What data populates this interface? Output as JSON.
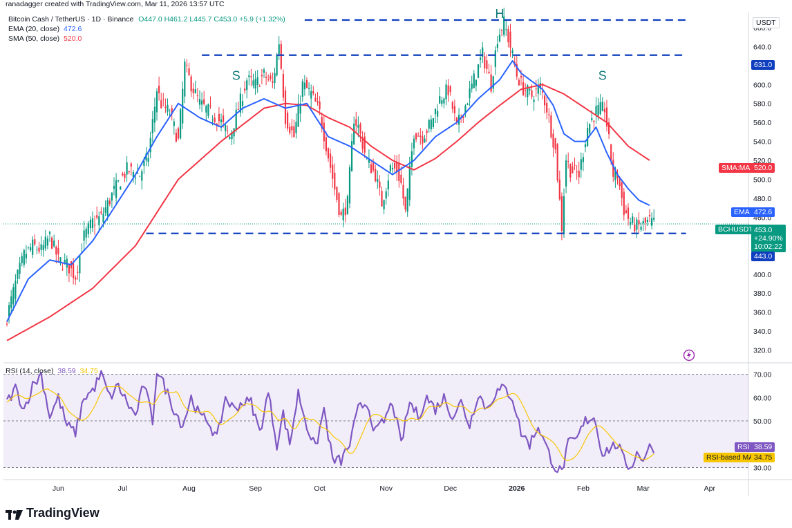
{
  "header": {
    "publisher": "ranadagger created with TradingView.com, Mar 11, 2026 13:57 UTC"
  },
  "legend": {
    "symbol": "Bitcoin Cash / TetherUS · 1D · Binance",
    "ohlc": "O447.0 H461.2 L445.7 C453.0 +5.9 (+1.32%)",
    "ema_title": "EMA (20, close)",
    "ema_value": "472.6",
    "sma_title": "SMA (50, close)",
    "sma_value": "520.0",
    "rsi_title": "RSI (14, close)",
    "rsi_value": "38.59",
    "rsi_ma_value": "34.75"
  },
  "tags": {
    "currency": "USDT",
    "sma_label": "SMA:MA",
    "sma_value": "520.0",
    "ema_label": "EMA",
    "ema_value": "472.6",
    "symbol": "BCHUSDT",
    "price": "453.0",
    "change": "+24.90%",
    "countdown": "10:02:22",
    "support": "443.0",
    "resistance": "631.0",
    "rsi_label": "RSI",
    "rsi_value": "38.59",
    "rsi_ma_label": "RSI-based MA",
    "rsi_ma_value": "34.75"
  },
  "brand": "TradingView",
  "colors": {
    "up": "#089981",
    "down": "#f23645",
    "ema": "#2962ff",
    "sma": "#f23645",
    "rsi": "#7e57c2",
    "rsi_ma": "#f7c600",
    "annot": "#0f3fbf",
    "letters": "#127a78"
  },
  "chart_data": {
    "type": "candlestick",
    "symbol": "BCHUSDT",
    "timeframe": "1D",
    "price_axis": {
      "ticks": [
        320,
        340,
        360,
        380,
        400,
        420,
        440,
        460,
        480,
        500,
        520,
        540,
        560,
        580,
        600,
        620,
        640,
        660
      ],
      "range": [
        308,
        676
      ]
    },
    "time_axis": {
      "labels": [
        "Jun",
        "Jul",
        "Aug",
        "Sep",
        "Oct",
        "Nov",
        "Dec",
        "2026",
        "Feb",
        "Mar",
        "Apr"
      ],
      "label_days": [
        24,
        54,
        85,
        116,
        146,
        177,
        207,
        238,
        269,
        297,
        328
      ]
    },
    "price_anchors": [
      [
        0,
        355
      ],
      [
        4,
        390
      ],
      [
        8,
        420
      ],
      [
        12,
        430
      ],
      [
        16,
        425
      ],
      [
        20,
        440
      ],
      [
        24,
        415
      ],
      [
        28,
        410
      ],
      [
        32,
        398
      ],
      [
        36,
        440
      ],
      [
        40,
        455
      ],
      [
        44,
        460
      ],
      [
        50,
        488
      ],
      [
        56,
        510
      ],
      [
        62,
        505
      ],
      [
        66,
        525
      ],
      [
        70,
        595
      ],
      [
        72,
        580
      ],
      [
        76,
        570
      ],
      [
        80,
        540
      ],
      [
        83,
        620
      ],
      [
        86,
        600
      ],
      [
        90,
        580
      ],
      [
        95,
        570
      ],
      [
        100,
        560
      ],
      [
        104,
        545
      ],
      [
        108,
        575
      ],
      [
        112,
        605
      ],
      [
        116,
        600
      ],
      [
        120,
        610
      ],
      [
        124,
        600
      ],
      [
        127,
        645
      ],
      [
        130,
        565
      ],
      [
        134,
        545
      ],
      [
        138,
        600
      ],
      [
        142,
        590
      ],
      [
        146,
        570
      ],
      [
        150,
        525
      ],
      [
        153,
        490
      ],
      [
        156,
        460
      ],
      [
        159,
        475
      ],
      [
        162,
        565
      ],
      [
        164,
        555
      ],
      [
        168,
        520
      ],
      [
        172,
        505
      ],
      [
        175,
        475
      ],
      [
        179,
        512
      ],
      [
        182,
        510
      ],
      [
        184,
        495
      ],
      [
        186,
        465
      ],
      [
        190,
        550
      ],
      [
        194,
        545
      ],
      [
        198,
        560
      ],
      [
        202,
        585
      ],
      [
        206,
        595
      ],
      [
        210,
        555
      ],
      [
        214,
        578
      ],
      [
        218,
        605
      ],
      [
        222,
        632
      ],
      [
        226,
        600
      ],
      [
        229,
        650
      ],
      [
        232,
        665
      ],
      [
        235,
        640
      ],
      [
        238,
        610
      ],
      [
        241,
        596
      ],
      [
        245,
        588
      ],
      [
        249,
        598
      ],
      [
        252,
        575
      ],
      [
        256,
        530
      ],
      [
        259,
        450
      ],
      [
        261,
        522
      ],
      [
        263,
        510
      ],
      [
        267,
        505
      ],
      [
        271,
        555
      ],
      [
        275,
        572
      ],
      [
        279,
        575
      ],
      [
        281,
        540
      ],
      [
        283,
        505
      ],
      [
        285,
        505
      ],
      [
        288,
        468
      ],
      [
        291,
        455
      ],
      [
        294,
        450
      ],
      [
        297,
        452
      ],
      [
        300,
        456
      ],
      [
        302,
        453
      ]
    ],
    "ema20_anchors": [
      [
        0,
        350
      ],
      [
        10,
        395
      ],
      [
        20,
        415
      ],
      [
        30,
        410
      ],
      [
        40,
        435
      ],
      [
        50,
        470
      ],
      [
        60,
        505
      ],
      [
        70,
        545
      ],
      [
        80,
        580
      ],
      [
        90,
        565
      ],
      [
        100,
        555
      ],
      [
        110,
        575
      ],
      [
        120,
        585
      ],
      [
        130,
        575
      ],
      [
        140,
        580
      ],
      [
        150,
        545
      ],
      [
        160,
        535
      ],
      [
        170,
        520
      ],
      [
        180,
        505
      ],
      [
        190,
        520
      ],
      [
        200,
        545
      ],
      [
        210,
        560
      ],
      [
        220,
        585
      ],
      [
        230,
        605
      ],
      [
        236,
        625
      ],
      [
        240,
        612
      ],
      [
        250,
        595
      ],
      [
        255,
        578
      ],
      [
        260,
        548
      ],
      [
        265,
        540
      ],
      [
        270,
        540
      ],
      [
        275,
        555
      ],
      [
        280,
        528
      ],
      [
        285,
        505
      ],
      [
        290,
        490
      ],
      [
        295,
        478
      ],
      [
        300,
        472.6
      ]
    ],
    "sma50_anchors": [
      [
        0,
        330
      ],
      [
        20,
        355
      ],
      [
        40,
        385
      ],
      [
        60,
        430
      ],
      [
        80,
        500
      ],
      [
        100,
        540
      ],
      [
        120,
        575
      ],
      [
        130,
        580
      ],
      [
        140,
        578
      ],
      [
        150,
        565
      ],
      [
        160,
        555
      ],
      [
        170,
        535
      ],
      [
        180,
        520
      ],
      [
        190,
        510
      ],
      [
        200,
        522
      ],
      [
        210,
        540
      ],
      [
        220,
        560
      ],
      [
        230,
        578
      ],
      [
        240,
        595
      ],
      [
        250,
        600
      ],
      [
        260,
        590
      ],
      [
        270,
        575
      ],
      [
        280,
        560
      ],
      [
        290,
        535
      ],
      [
        300,
        520
      ]
    ],
    "rsi_anchors": [
      [
        0,
        58
      ],
      [
        4,
        64
      ],
      [
        8,
        55
      ],
      [
        12,
        65
      ],
      [
        16,
        70
      ],
      [
        20,
        52
      ],
      [
        24,
        60
      ],
      [
        28,
        48
      ],
      [
        32,
        45
      ],
      [
        36,
        60
      ],
      [
        40,
        63
      ],
      [
        44,
        70
      ],
      [
        48,
        60
      ],
      [
        52,
        65
      ],
      [
        56,
        58
      ],
      [
        60,
        52
      ],
      [
        64,
        66
      ],
      [
        68,
        50
      ],
      [
        70,
        72
      ],
      [
        74,
        64
      ],
      [
        78,
        55
      ],
      [
        82,
        48
      ],
      [
        86,
        60
      ],
      [
        90,
        52
      ],
      [
        94,
        50
      ],
      [
        98,
        42
      ],
      [
        102,
        60
      ],
      [
        106,
        55
      ],
      [
        110,
        58
      ],
      [
        114,
        58
      ],
      [
        118,
        45
      ],
      [
        122,
        62
      ],
      [
        126,
        40
      ],
      [
        129,
        53
      ],
      [
        132,
        40
      ],
      [
        136,
        62
      ],
      [
        140,
        48
      ],
      [
        144,
        38
      ],
      [
        148,
        55
      ],
      [
        152,
        33
      ],
      [
        156,
        33
      ],
      [
        160,
        40
      ],
      [
        164,
        55
      ],
      [
        168,
        58
      ],
      [
        172,
        45
      ],
      [
        176,
        50
      ],
      [
        180,
        58
      ],
      [
        184,
        40
      ],
      [
        188,
        58
      ],
      [
        192,
        52
      ],
      [
        196,
        60
      ],
      [
        200,
        55
      ],
      [
        204,
        60
      ],
      [
        208,
        52
      ],
      [
        212,
        58
      ],
      [
        216,
        48
      ],
      [
        220,
        62
      ],
      [
        224,
        55
      ],
      [
        228,
        62
      ],
      [
        232,
        64
      ],
      [
        236,
        60
      ],
      [
        240,
        45
      ],
      [
        244,
        40
      ],
      [
        248,
        48
      ],
      [
        252,
        38
      ],
      [
        256,
        30
      ],
      [
        259,
        28
      ],
      [
        262,
        40
      ],
      [
        266,
        42
      ],
      [
        270,
        50
      ],
      [
        274,
        52
      ],
      [
        278,
        36
      ],
      [
        281,
        38
      ],
      [
        285,
        40
      ],
      [
        288,
        33
      ],
      [
        291,
        30
      ],
      [
        294,
        36
      ],
      [
        297,
        34
      ],
      [
        300,
        38.59
      ]
    ],
    "rsi_axis": {
      "ticks": [
        30,
        40,
        50,
        60,
        70
      ],
      "range": [
        26,
        74
      ],
      "bands": [
        30,
        70
      ],
      "mid": 50
    },
    "levels": [
      {
        "price": 668,
        "day_from": 139,
        "day_to": 317
      },
      {
        "price": 631,
        "day_from": 91,
        "day_to": 317
      },
      {
        "price": 443,
        "day_from": 65,
        "day_to": 317
      }
    ],
    "pattern_labels": [
      {
        "text": "S",
        "day": 107,
        "price": 605
      },
      {
        "text": "H",
        "day": 230,
        "price": 670
      },
      {
        "text": "S",
        "day": 278,
        "price": 605
      }
    ]
  }
}
